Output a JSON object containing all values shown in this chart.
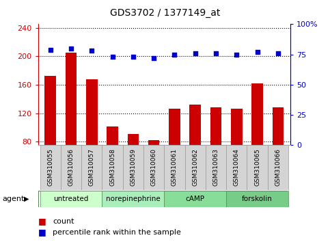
{
  "title": "GDS3702 / 1377149_at",
  "samples": [
    "GSM310055",
    "GSM310056",
    "GSM310057",
    "GSM310058",
    "GSM310059",
    "GSM310060",
    "GSM310061",
    "GSM310062",
    "GSM310063",
    "GSM310064",
    "GSM310065",
    "GSM310066"
  ],
  "counts": [
    172,
    205,
    168,
    101,
    91,
    82,
    126,
    132,
    128,
    126,
    162,
    128
  ],
  "percentiles": [
    79,
    80,
    78,
    73,
    73,
    72,
    75,
    76,
    76,
    75,
    77,
    76
  ],
  "agents": [
    {
      "label": "untreated",
      "start": 0,
      "end": 3
    },
    {
      "label": "norepinephrine",
      "start": 3,
      "end": 6
    },
    {
      "label": "cAMP",
      "start": 6,
      "end": 9
    },
    {
      "label": "forskolin",
      "start": 9,
      "end": 12
    }
  ],
  "ylim_left": [
    75,
    245
  ],
  "ylim_right": [
    0,
    100
  ],
  "yticks_left": [
    80,
    120,
    160,
    200,
    240
  ],
  "yticks_right": [
    0,
    25,
    50,
    75,
    100
  ],
  "bar_color": "#cc0000",
  "dot_color": "#0000cc",
  "bar_width": 0.55,
  "left_label_color": "#cc0000",
  "right_label_color": "#0000cc",
  "agent_colors": [
    "#ccffcc",
    "#aaeebb",
    "#88dd99",
    "#77cc88"
  ],
  "sample_bg": "#d4d4d4",
  "gridline_color": "#000000"
}
